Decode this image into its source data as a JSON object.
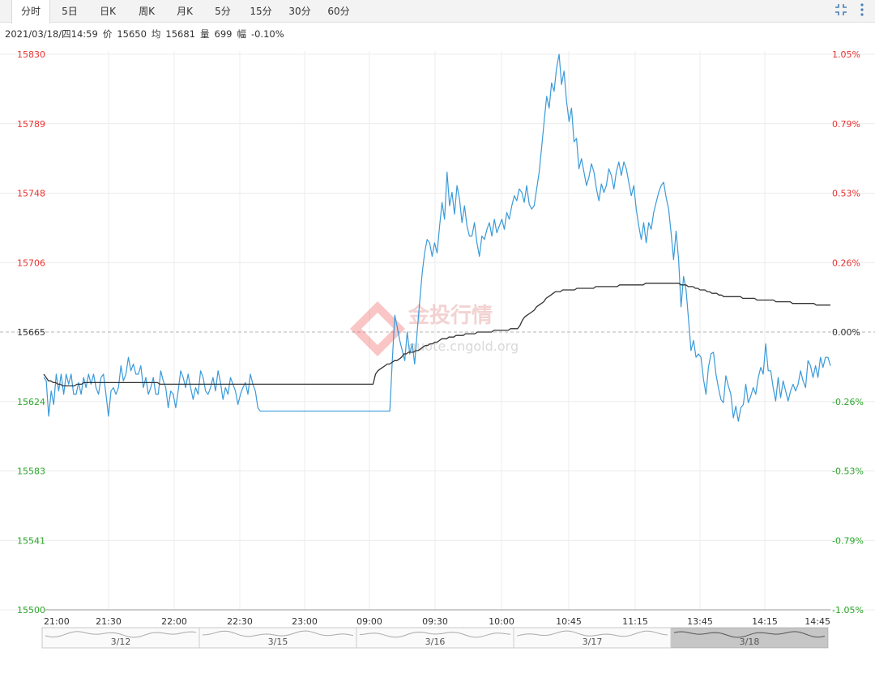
{
  "tabs": [
    {
      "label": "分时",
      "active": true
    },
    {
      "label": "5日",
      "active": false
    },
    {
      "label": "日K",
      "active": false
    },
    {
      "label": "周K",
      "active": false
    },
    {
      "label": "月K",
      "active": false
    },
    {
      "label": "5分",
      "active": false
    },
    {
      "label": "15分",
      "active": false
    },
    {
      "label": "30分",
      "active": false
    },
    {
      "label": "60分",
      "active": false
    }
  ],
  "toolbar": {
    "expand_icon": "expand-icon",
    "more_icon": "more-vertical-icon"
  },
  "info": {
    "datetime": "2021/03/18/四14:59",
    "price_label": "价",
    "price": "15650",
    "avg_label": "均",
    "avg": "15681",
    "volume_label": "量",
    "volume": "699",
    "change_label": "幅",
    "change": "-0.10%"
  },
  "watermark": {
    "brand": "金投行情",
    "url": "quote.cngold.org"
  },
  "colors": {
    "price_line": "#3a9ad9",
    "avg_line": "#333333",
    "up": "#e8312f",
    "down": "#2aa52a",
    "grid": "#ececec"
  },
  "chart_data": {
    "type": "line",
    "y_ticks": [
      "15830",
      "15789",
      "15748",
      "15706",
      "15665",
      "15624",
      "15583",
      "15541",
      "15500"
    ],
    "pct_ticks": [
      "1.05%",
      "0.79%",
      "0.53%",
      "0.26%",
      "0.00%",
      "-0.26%",
      "-0.53%",
      "-0.79%",
      "-1.05%"
    ],
    "ylim": [
      15500,
      15830
    ],
    "reference_price": 15665,
    "x_labels": [
      "21:00",
      "21:30",
      "22:00",
      "22:30",
      "23:00",
      "09:00",
      "09:30",
      "10:00",
      "10:45",
      "11:15",
      "13:45",
      "14:15",
      "14:45"
    ],
    "navigator_labels": [
      "3/12",
      "3/15",
      "3/16",
      "3/17",
      "3/18"
    ],
    "navigator_selected": "3/18",
    "series": [
      {
        "values": [
          15638,
          15636,
          15615,
          15630,
          15622,
          15640,
          15630,
          15640,
          15628,
          15640,
          15634,
          15640,
          15628,
          15628,
          15635,
          15628,
          15638,
          15632,
          15640,
          15634,
          15640,
          15632,
          15628,
          15638,
          15640,
          15628,
          15615,
          15630,
          15632,
          15628,
          15632,
          15645,
          15636,
          15640,
          15650,
          15642,
          15646,
          15640,
          15640,
          15645,
          15632,
          15638,
          15628,
          15632,
          15638,
          15628,
          15628,
          15642,
          15636,
          15632,
          15620,
          15630,
          15628,
          15620,
          15630,
          15642,
          15638,
          15632,
          15640,
          15632,
          15625,
          15632,
          15628,
          15642,
          15638,
          15630,
          15628,
          15632,
          15638,
          15630,
          15642,
          15635,
          15625,
          15632,
          15628,
          15638,
          15634,
          15630,
          15622,
          15628,
          15632,
          15635,
          15628,
          15640,
          15634,
          15630,
          15620,
          15618,
          15618,
          15618,
          15618,
          15618,
          15618,
          15618,
          15618,
          15618,
          15618,
          15618,
          15618,
          15618,
          15618,
          15618,
          15618,
          15618,
          15618,
          15618,
          15618,
          15618,
          15618,
          15618,
          15618,
          15618,
          15618,
          15618,
          15618,
          15618,
          15618,
          15618,
          15618,
          15618,
          15618,
          15618,
          15618,
          15618,
          15618,
          15618,
          15618,
          15618,
          15618,
          15618,
          15618,
          15618,
          15618,
          15618,
          15618,
          15618,
          15618,
          15618,
          15618,
          15618,
          15648,
          15675,
          15668,
          15660,
          15654,
          15648,
          15665,
          15652,
          15658,
          15646,
          15665,
          15683,
          15700,
          15712,
          15720,
          15718,
          15710,
          15718,
          15712,
          15728,
          15742,
          15732,
          15760,
          15740,
          15748,
          15735,
          15752,
          15744,
          15730,
          15740,
          15728,
          15722,
          15722,
          15730,
          15718,
          15710,
          15722,
          15720,
          15726,
          15730,
          15722,
          15732,
          15724,
          15728,
          15732,
          15726,
          15736,
          15732,
          15740,
          15746,
          15743,
          15750,
          15748,
          15742,
          15752,
          15741,
          15738,
          15740,
          15750,
          15760,
          15775,
          15790,
          15805,
          15798,
          15813,
          15808,
          15822,
          15830,
          15812,
          15820,
          15802,
          15790,
          15798,
          15778,
          15780,
          15762,
          15768,
          15760,
          15752,
          15757,
          15765,
          15760,
          15750,
          15743,
          15753,
          15748,
          15752,
          15762,
          15758,
          15750,
          15760,
          15766,
          15758,
          15766,
          15762,
          15754,
          15746,
          15752,
          15738,
          15728,
          15720,
          15730,
          15718,
          15730,
          15726,
          15736,
          15742,
          15748,
          15752,
          15754,
          15745,
          15738,
          15724,
          15708,
          15725,
          15708,
          15680,
          15698,
          15690,
          15672,
          15654,
          15660,
          15650,
          15652,
          15650,
          15637,
          15628,
          15644,
          15652,
          15653,
          15640,
          15632,
          15625,
          15623,
          15639,
          15633,
          15628,
          15614,
          15621,
          15612,
          15620,
          15622,
          15634,
          15623,
          15627,
          15632,
          15628,
          15638,
          15644,
          15640,
          15658,
          15642,
          15642,
          15632,
          15624,
          15638,
          15626,
          15636,
          15630,
          15624,
          15630,
          15634,
          15630,
          15634,
          15642,
          15636,
          15632,
          15648,
          15645,
          15638,
          15645,
          15638,
          15650,
          15644,
          15650,
          15650,
          15645
        ]
      },
      {
        "values": [
          15640,
          15638,
          15636,
          15636,
          15635,
          15635,
          15634,
          15634,
          15633,
          15633,
          15633,
          15633,
          15633,
          15633,
          15634,
          15634,
          15634,
          15635,
          15635,
          15635,
          15635,
          15635,
          15635,
          15635,
          15635,
          15635,
          15635,
          15635,
          15635,
          15635,
          15635,
          15635,
          15635,
          15635,
          15635,
          15635,
          15635,
          15635,
          15635,
          15635,
          15635,
          15635,
          15635,
          15635,
          15635,
          15635,
          15635,
          15635,
          15635,
          15634,
          15634,
          15634,
          15634,
          15634,
          15634,
          15634,
          15634,
          15634,
          15634,
          15634,
          15634,
          15634,
          15634,
          15634,
          15634,
          15634,
          15634,
          15634,
          15634,
          15634,
          15634,
          15634,
          15634,
          15634,
          15634,
          15634,
          15634,
          15634,
          15634,
          15634,
          15634,
          15634,
          15634,
          15634,
          15634,
          15634,
          15634,
          15634,
          15634,
          15634,
          15634,
          15634,
          15634,
          15634,
          15634,
          15634,
          15634,
          15634,
          15634,
          15634,
          15634,
          15634,
          15634,
          15634,
          15634,
          15634,
          15634,
          15634,
          15634,
          15634,
          15634,
          15634,
          15634,
          15634,
          15634,
          15634,
          15634,
          15634,
          15634,
          15634,
          15634,
          15634,
          15634,
          15634,
          15634,
          15634,
          15634,
          15634,
          15634,
          15634,
          15634,
          15634,
          15634,
          15634,
          15634,
          15634,
          15634,
          15634,
          15634,
          15634,
          15640,
          15642,
          15643,
          15644,
          15645,
          15646,
          15646,
          15647,
          15648,
          15648,
          15649,
          15650,
          15652,
          15652,
          15653,
          15653,
          15653,
          15654,
          15654,
          15655,
          15656,
          15657,
          15657,
          15658,
          15658,
          15659,
          15659,
          15660,
          15661,
          15661,
          15661,
          15662,
          15662,
          15662,
          15663,
          15663,
          15663,
          15663,
          15664,
          15664,
          15664,
          15664,
          15664,
          15665,
          15665,
          15665,
          15665,
          15665,
          15665,
          15665,
          15666,
          15666,
          15666,
          15666,
          15666,
          15666,
          15666,
          15667,
          15667,
          15667,
          15667,
          15669,
          15672,
          15674,
          15675,
          15676,
          15677,
          15678,
          15680,
          15681,
          15682,
          15683,
          15685,
          15686,
          15687,
          15688,
          15689,
          15689,
          15689,
          15690,
          15690,
          15690,
          15690,
          15690,
          15690,
          15691,
          15691,
          15691,
          15691,
          15691,
          15691,
          15691,
          15691,
          15692,
          15692,
          15692,
          15692,
          15692,
          15692,
          15692,
          15692,
          15692,
          15692,
          15693,
          15693,
          15693,
          15693,
          15693,
          15693,
          15693,
          15693,
          15693,
          15693,
          15693,
          15694,
          15694,
          15694,
          15694,
          15694,
          15694,
          15694,
          15694,
          15694,
          15694,
          15694,
          15694,
          15694,
          15694,
          15694,
          15693,
          15693,
          15693,
          15692,
          15692,
          15692,
          15691,
          15691,
          15690,
          15690,
          15690,
          15689,
          15689,
          15688,
          15688,
          15688,
          15687,
          15687,
          15686,
          15686,
          15686,
          15686,
          15686,
          15686,
          15686,
          15686,
          15685,
          15685,
          15685,
          15685,
          15685,
          15685,
          15684,
          15684,
          15684,
          15684,
          15684,
          15684,
          15684,
          15684,
          15683,
          15683,
          15683,
          15683,
          15683,
          15683,
          15683,
          15682,
          15682,
          15682,
          15682,
          15682,
          15682,
          15682,
          15682,
          15682,
          15682,
          15681,
          15681,
          15681,
          15681,
          15681,
          15681,
          15681
        ]
      }
    ]
  }
}
